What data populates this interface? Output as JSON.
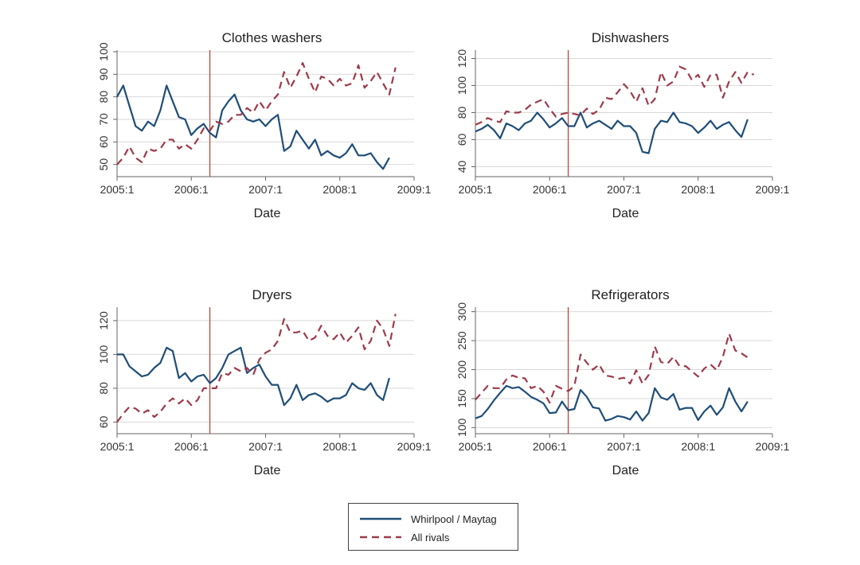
{
  "chart_data": [
    {
      "type": "line",
      "title": "Clothes washers",
      "xlabel": "Date",
      "ylabel": "",
      "x_range": [
        2005.0,
        2009.0
      ],
      "x_ticks": [
        {
          "value": 2005.0,
          "label": "2005:1"
        },
        {
          "value": 2006.0,
          "label": "2006:1"
        },
        {
          "value": 2007.0,
          "label": "2007:1"
        },
        {
          "value": 2008.0,
          "label": "2008:1"
        },
        {
          "value": 2009.0,
          "label": "2009:1"
        }
      ],
      "ylim": [
        46,
        100
      ],
      "y_ticks": [
        50,
        60,
        70,
        80,
        90,
        100
      ],
      "event_x": 2006.25,
      "start_x": 2005.0,
      "step_x": 0.08333,
      "series": [
        {
          "name": "Whirlpool / Maytag",
          "values": [
            80,
            85,
            76,
            67,
            65,
            69,
            67,
            74,
            85,
            78,
            71,
            70,
            63,
            66,
            68,
            64,
            62,
            74,
            78,
            81,
            74,
            70,
            69,
            70,
            67,
            70,
            72,
            56,
            58,
            65,
            61,
            57,
            61,
            54,
            56,
            54,
            53,
            55,
            59,
            54,
            54,
            55,
            51,
            48,
            53
          ]
        },
        {
          "name": "All rivals",
          "values": [
            50,
            53,
            58,
            53,
            51,
            57,
            56,
            57,
            61,
            61,
            57,
            59,
            57,
            61,
            66,
            65,
            69,
            68,
            69,
            72,
            72,
            75,
            73,
            78,
            74,
            78,
            81,
            91,
            84,
            89,
            95,
            88,
            82,
            89,
            88,
            85,
            88,
            85,
            86,
            94,
            84,
            87,
            91,
            86,
            81,
            93
          ]
        }
      ]
    },
    {
      "type": "line",
      "title": "Dishwashers",
      "xlabel": "Date",
      "ylabel": "",
      "x_range": [
        2005.0,
        2009.0
      ],
      "x_ticks": [
        {
          "value": 2005.0,
          "label": "2005:1"
        },
        {
          "value": 2006.0,
          "label": "2006:1"
        },
        {
          "value": 2007.0,
          "label": "2007:1"
        },
        {
          "value": 2008.0,
          "label": "2008:1"
        },
        {
          "value": 2009.0,
          "label": "2009:1"
        }
      ],
      "ylim": [
        35,
        125
      ],
      "y_ticks": [
        40,
        60,
        80,
        100,
        120
      ],
      "event_x": 2006.25,
      "start_x": 2005.0,
      "step_x": 0.08333,
      "series": [
        {
          "name": "Whirlpool / Maytag",
          "values": [
            66,
            68,
            71,
            67,
            61,
            72,
            70,
            67,
            72,
            74,
            80,
            75,
            69,
            72,
            76,
            70,
            70,
            80,
            69,
            72,
            74,
            71,
            68,
            74,
            70,
            70,
            65,
            51,
            50,
            68,
            74,
            73,
            80,
            73,
            72,
            70,
            65,
            69,
            74,
            68,
            71,
            73,
            67,
            62,
            75
          ]
        },
        {
          "name": "All rivals",
          "values": [
            71,
            73,
            76,
            74,
            73,
            81,
            80,
            80,
            82,
            86,
            88,
            90,
            83,
            77,
            79,
            80,
            79,
            78,
            83,
            79,
            82,
            91,
            90,
            95,
            101,
            96,
            88,
            98,
            85,
            90,
            110,
            100,
            103,
            114,
            112,
            104,
            108,
            99,
            108,
            108,
            91,
            103,
            110,
            102,
            110,
            108
          ]
        }
      ]
    },
    {
      "type": "line",
      "title": "Dryers",
      "xlabel": "Date",
      "ylabel": "",
      "x_range": [
        2005.0,
        2009.0
      ],
      "x_ticks": [
        {
          "value": 2005.0,
          "label": "2005:1"
        },
        {
          "value": 2006.0,
          "label": "2006:1"
        },
        {
          "value": 2007.0,
          "label": "2007:1"
        },
        {
          "value": 2008.0,
          "label": "2008:1"
        },
        {
          "value": 2009.0,
          "label": "2009:1"
        }
      ],
      "ylim": [
        55,
        127
      ],
      "y_ticks": [
        60,
        80,
        100,
        120
      ],
      "event_x": 2006.25,
      "start_x": 2005.0,
      "step_x": 0.08333,
      "series": [
        {
          "name": "Whirlpool / Maytag",
          "values": [
            100,
            100,
            93,
            90,
            87,
            88,
            92,
            95,
            104,
            102,
            86,
            89,
            84,
            87,
            88,
            83,
            86,
            92,
            100,
            102,
            104,
            89,
            92,
            94,
            87,
            82,
            82,
            70,
            74,
            82,
            73,
            76,
            77,
            75,
            72,
            74,
            74,
            76,
            83,
            80,
            79,
            83,
            76,
            73,
            86
          ]
        },
        {
          "name": "All rivals",
          "values": [
            60,
            65,
            69,
            68,
            65,
            67,
            63,
            66,
            71,
            74,
            71,
            74,
            70,
            73,
            80,
            80,
            80,
            89,
            88,
            92,
            90,
            92,
            88,
            97,
            101,
            103,
            108,
            121,
            113,
            113,
            114,
            108,
            110,
            117,
            111,
            109,
            113,
            107,
            111,
            116,
            103,
            108,
            120,
            115,
            105,
            124
          ]
        }
      ]
    },
    {
      "type": "line",
      "title": "Refrigerators",
      "xlabel": "Date",
      "ylabel": "",
      "x_range": [
        2005.0,
        2009.0
      ],
      "x_ticks": [
        {
          "value": 2005.0,
          "label": "2005:1"
        },
        {
          "value": 2006.0,
          "label": "2006:1"
        },
        {
          "value": 2007.0,
          "label": "2007:1"
        },
        {
          "value": 2008.0,
          "label": "2008:1"
        },
        {
          "value": 2009.0,
          "label": "2009:1"
        }
      ],
      "ylim": [
        95,
        305
      ],
      "y_ticks": [
        100,
        150,
        200,
        250,
        300
      ],
      "event_x": 2006.25,
      "start_x": 2005.0,
      "step_x": 0.08333,
      "series": [
        {
          "name": "Whirlpool / Maytag",
          "values": [
            116,
            120,
            132,
            147,
            160,
            172,
            168,
            170,
            162,
            153,
            148,
            142,
            125,
            126,
            145,
            130,
            132,
            165,
            153,
            135,
            133,
            112,
            115,
            120,
            118,
            114,
            128,
            112,
            125,
            168,
            152,
            148,
            158,
            131,
            134,
            134,
            113,
            128,
            138,
            122,
            135,
            168,
            145,
            128,
            145
          ]
        },
        {
          "name": "All rivals",
          "values": [
            148,
            160,
            172,
            168,
            168,
            183,
            190,
            186,
            185,
            168,
            172,
            162,
            143,
            172,
            167,
            163,
            172,
            226,
            212,
            200,
            209,
            190,
            188,
            184,
            186,
            176,
            199,
            176,
            191,
            240,
            213,
            210,
            222,
            206,
            206,
            197,
            188,
            202,
            209,
            199,
            222,
            262,
            233,
            228,
            221
          ]
        }
      ]
    }
  ],
  "legend": {
    "items": [
      {
        "label": "Whirlpool / Maytag",
        "color": "#1f4e79",
        "style": "solid"
      },
      {
        "label": "All rivals",
        "color": "#9e3a4a",
        "style": "dashed"
      }
    ]
  },
  "colors": {
    "whirlpool": "#1f4e79",
    "rivals": "#9e3a4a",
    "event_line": "#c0392b"
  }
}
